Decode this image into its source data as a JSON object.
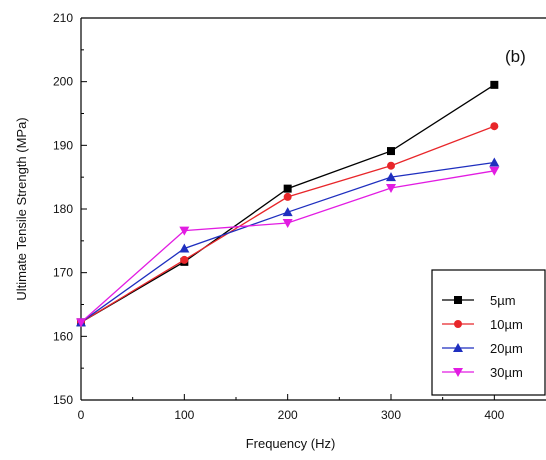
{
  "chart_data": {
    "type": "line",
    "panel_label": "(b)",
    "xlabel": "Frequency (Hz)",
    "ylabel": "Ultimate Tensile Strength (MPa)",
    "xlim": [
      0,
      450
    ],
    "ylim": [
      150,
      210
    ],
    "x_ticks": [
      0,
      100,
      200,
      300,
      400
    ],
    "y_ticks": [
      150,
      160,
      170,
      180,
      190,
      200,
      210
    ],
    "grid": false,
    "legend_placement": "bottom-right",
    "x": [
      0,
      100,
      200,
      300,
      400
    ],
    "series": [
      {
        "name": "5µm",
        "color": "#000000",
        "marker": "square",
        "values": [
          162.2,
          171.7,
          183.2,
          189.1,
          199.5
        ]
      },
      {
        "name": "10µm",
        "color": "#e8262a",
        "marker": "circle",
        "values": [
          162.2,
          172.0,
          181.9,
          186.8,
          193.0
        ]
      },
      {
        "name": "20µm",
        "color": "#1f2fbf",
        "marker": "triangle-up",
        "values": [
          162.2,
          173.8,
          179.5,
          185.0,
          187.3
        ]
      },
      {
        "name": "30µm",
        "color": "#e21ce2",
        "marker": "triangle-down",
        "values": [
          162.2,
          176.6,
          177.8,
          183.3,
          186.0
        ]
      }
    ]
  }
}
